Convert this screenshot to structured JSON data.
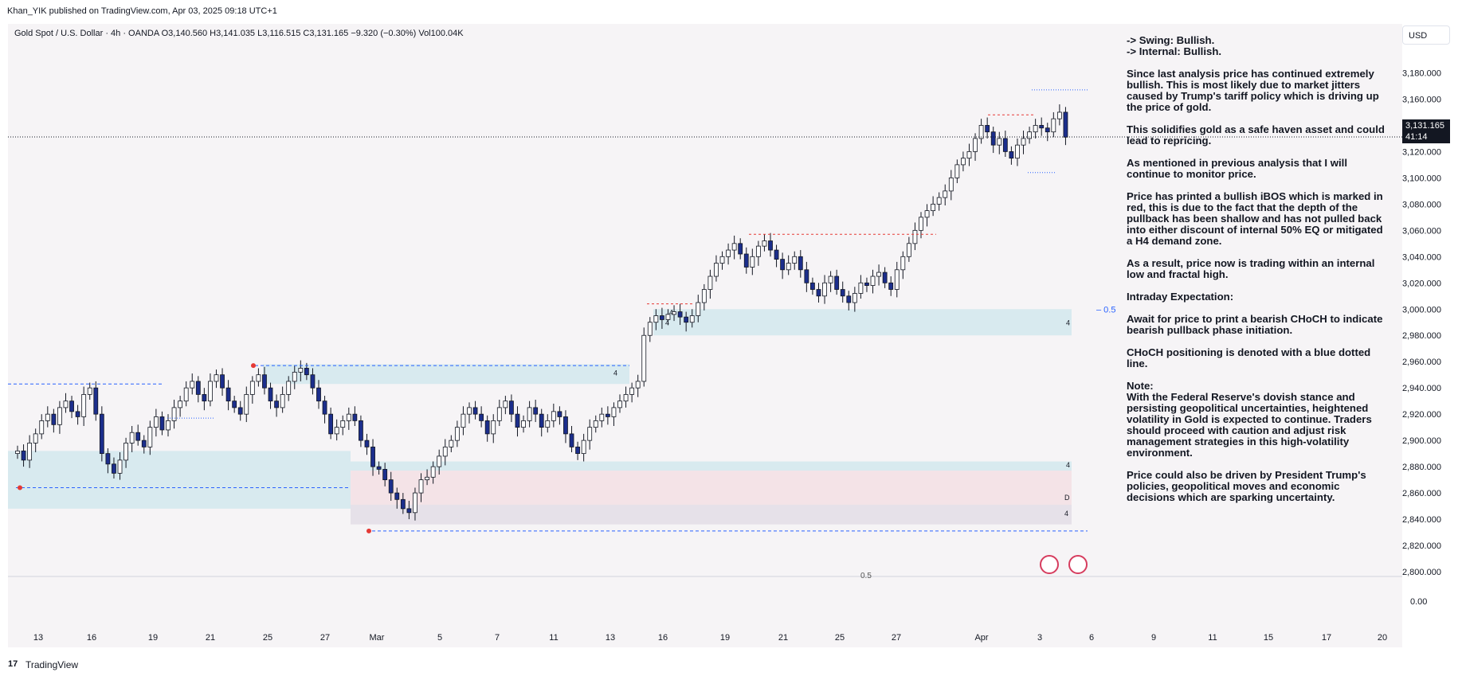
{
  "header": {
    "published": "Khan_YIK published on TradingView.com, Apr 03, 2025 09:18 UTC+1",
    "legend": "Gold Spot / U.S. Dollar · 4h · OANDA  O3,140.560  H3,141.035  L3,116.515  C3,131.165  −9.320 (−0.30%)  Vol100.04K"
  },
  "currency_button": "USD",
  "price_tag": {
    "price": "3,131.165",
    "countdown": "41:14"
  },
  "notes": {
    "swing": "-> Swing:  Bullish.",
    "internal": "-> Internal:  Bullish.",
    "paragraphs": [
      "Since last analysis price has continued extremely bullish.  This is most likely due to market jitters caused by Trump's tariff policy which is driving up the price of gold.",
      "This solidifies gold as a safe haven asset and could lead to repricing.",
      "As mentioned in previous analysis that I will continue to monitor price.",
      "Price has printed a bullish iBOS which is marked in red, this is due to the fact that the depth of the pullback has been shallow and has not pulled back into either discount of internal 50% EQ or mitigated a H4 demand zone.",
      "As a result, price now is trading within an internal low and fractal high.",
      "Intraday Expectation:",
      "Await for price to print a bearish CHoCH to indicate bearish pullback phase initiation.",
      "CHoCH positioning is denoted with a blue dotted line.",
      "Note:\nWith the Federal Reserve's dovish stance and persisting geopolitical uncertainties, heightened volatility in Gold is expected to continue. Traders should proceed with caution and adjust risk management strategies in this high-volatility environment.",
      "Price could also be driven by President Trump's policies, geopolitical moves and economic decisions which are sparking uncertainty."
    ]
  },
  "footer": {
    "brand": "TradingView",
    "logo": "17"
  },
  "chart_data": {
    "type": "candlestick",
    "instrument": "Gold Spot / U.S. Dollar",
    "timeframe": "4h",
    "ylim": [
      2800,
      3190
    ],
    "y_ticks": [
      "3,180.000",
      "3,160.000",
      "3,140.000",
      "3,120.000",
      "3,100.000",
      "3,080.000",
      "3,060.000",
      "3,040.000",
      "3,020.000",
      "3,000.000",
      "2,980.000",
      "2,960.000",
      "2,940.000",
      "2,920.000",
      "2,900.000",
      "2,880.000",
      "2,860.000",
      "2,840.000",
      "2,820.000",
      "2,800.000"
    ],
    "y_tick_values": [
      3180,
      3160,
      3140,
      3120,
      3100,
      3080,
      3060,
      3040,
      3020,
      3000,
      2980,
      2960,
      2940,
      2920,
      2900,
      2880,
      2860,
      2840,
      2820,
      2800
    ],
    "volume_axis_label": "0.00",
    "x_ticks": [
      "13",
      "16",
      "19",
      "21",
      "25",
      "27",
      "Mar",
      "5",
      "7",
      "11",
      "13",
      "16",
      "19",
      "21",
      "25",
      "27",
      "Apr",
      "3",
      "6",
      "9",
      "11",
      "15",
      "17",
      "20"
    ],
    "last_price": 3131.165,
    "eq_label": "0.5",
    "eq_label_lower": "0.5",
    "zone_labels": [
      "4",
      "4",
      "D",
      "4",
      "4",
      "4",
      "4"
    ],
    "closes": [
      2892,
      2885,
      2898,
      2905,
      2915,
      2920,
      2912,
      2925,
      2930,
      2922,
      2918,
      2935,
      2940,
      2920,
      2890,
      2882,
      2875,
      2885,
      2898,
      2906,
      2900,
      2895,
      2910,
      2918,
      2908,
      2915,
      2925,
      2930,
      2940,
      2945,
      2935,
      2930,
      2945,
      2950,
      2940,
      2930,
      2925,
      2920,
      2935,
      2945,
      2950,
      2940,
      2930,
      2925,
      2935,
      2945,
      2952,
      2955,
      2950,
      2940,
      2930,
      2920,
      2905,
      2910,
      2915,
      2920,
      2915,
      2900,
      2895,
      2880,
      2878,
      2870,
      2860,
      2855,
      2848,
      2845,
      2860,
      2870,
      2872,
      2880,
      2888,
      2895,
      2900,
      2910,
      2920,
      2925,
      2920,
      2915,
      2905,
      2915,
      2925,
      2930,
      2920,
      2910,
      2915,
      2925,
      2920,
      2910,
      2915,
      2922,
      2918,
      2905,
      2895,
      2890,
      2900,
      2910,
      2915,
      2920,
      2918,
      2925,
      2930,
      2935,
      2940,
      2945,
      2980,
      2990,
      2995,
      2992,
      2996,
      2998,
      2994,
      2990,
      2995,
      3005,
      3015,
      3025,
      3035,
      3040,
      3045,
      3050,
      3042,
      3032,
      3040,
      3048,
      3052,
      3045,
      3038,
      3030,
      3035,
      3040,
      3030,
      3020,
      3015,
      3010,
      3020,
      3025,
      3015,
      3010,
      3005,
      3012,
      3020,
      3018,
      3025,
      3028,
      3020,
      3015,
      3030,
      3040,
      3050,
      3060,
      3070,
      3075,
      3080,
      3085,
      3090,
      3100,
      3110,
      3115,
      3120,
      3130,
      3140,
      3135,
      3125,
      3130,
      3120,
      3115,
      3125,
      3130,
      3135,
      3140,
      3138,
      3135,
      3145,
      3150,
      3131
    ]
  }
}
